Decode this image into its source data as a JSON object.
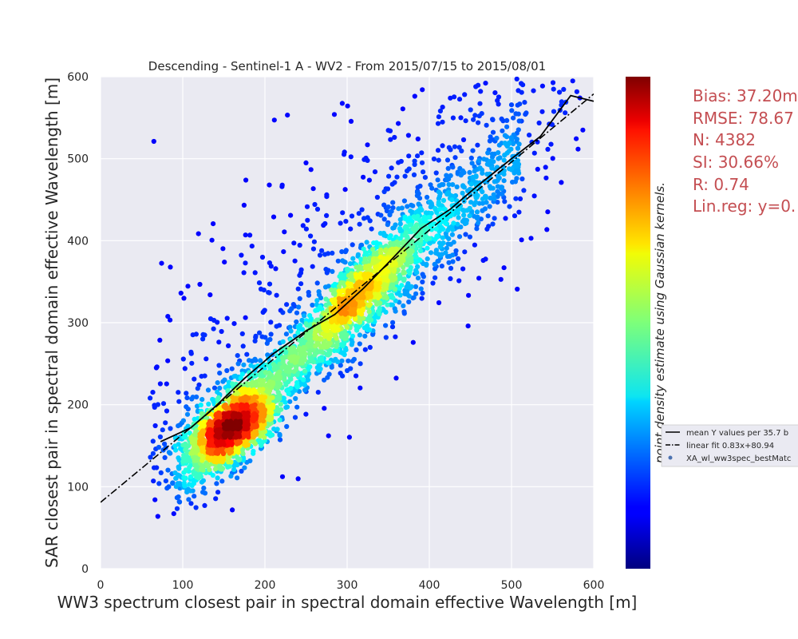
{
  "chart_data": {
    "type": "scatter",
    "title": "Descending - Sentinel-1 A - WV2 - From 2015/07/15 to 2015/08/01",
    "xlabel": "WW3 spectrum closest pair in spectral domain effective Wavelength [m]",
    "ylabel": "SAR closest pair in spectral domain effective Wavelength [m]",
    "xlim": [
      0,
      600
    ],
    "ylim": [
      0,
      600
    ],
    "x_ticks": [
      "0",
      "100",
      "200",
      "300",
      "400",
      "500",
      "600"
    ],
    "y_ticks": [
      "0",
      "100",
      "200",
      "300",
      "400",
      "500",
      "600"
    ],
    "grid": true,
    "colormap": "jet",
    "colorbar_label": "point density estimate using Gaussian kernels.",
    "stats": [
      "Bias: 37.20m",
      "RMSE: 78.67",
      "N: 4382",
      "SI: 30.66%",
      "R: 0.74",
      "Lin.reg: y=0."
    ],
    "n_points": 4382,
    "series": [
      {
        "name": "mean Y values per 35.7 b",
        "kind": "line",
        "style": "solid",
        "color": "#000000",
        "x": [
          73,
          110,
          140,
          175,
          210,
          250,
          285,
          320,
          355,
          390,
          425,
          460,
          500,
          535,
          572,
          600
        ],
        "y": [
          155,
          172,
          198,
          232,
          262,
          290,
          310,
          342,
          378,
          415,
          438,
          468,
          500,
          527,
          577,
          570
        ]
      },
      {
        "name": "linear fit 0.83x+80.94",
        "kind": "line",
        "style": "dashdot",
        "color": "#000000",
        "slope": 0.83,
        "intercept": 80.94,
        "x_range": [
          0,
          600
        ]
      },
      {
        "name": "XA_wl_ww3spec_bestMatc",
        "kind": "scatter",
        "color": "#4c72b0"
      }
    ],
    "legend_position": "right, outside plot",
    "colors": {
      "axes_bg": "#eaeaf2",
      "grid": "#ffffff",
      "stats_text": "#c44e52",
      "mean_line": "#000000"
    }
  }
}
